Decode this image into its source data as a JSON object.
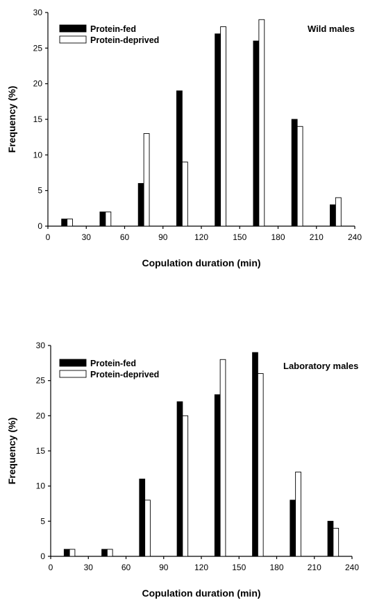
{
  "chart_data": [
    {
      "type": "bar",
      "title": "Wild males",
      "xlabel": "Copulation duration (min)",
      "ylabel": "Frequency (%)",
      "xlim": [
        0,
        240
      ],
      "ylim": [
        0,
        30
      ],
      "xticks": [
        0,
        30,
        60,
        90,
        120,
        150,
        180,
        210,
        240
      ],
      "yticks": [
        0,
        5,
        10,
        15,
        20,
        25,
        30
      ],
      "legend_position": "top-left",
      "grid": false,
      "x": [
        15,
        45,
        75,
        105,
        135,
        165,
        195,
        225
      ],
      "series": [
        {
          "name": "Protein-fed",
          "color": "#000000",
          "values": [
            1,
            2,
            6,
            19,
            27,
            26,
            15,
            3
          ]
        },
        {
          "name": "Protein-deprived",
          "color": "#ffffff",
          "values": [
            1,
            2,
            13,
            9,
            28,
            29,
            14,
            4
          ]
        }
      ]
    },
    {
      "type": "bar",
      "title": "Laboratory males",
      "xlabel": "Copulation duration (min)",
      "ylabel": "Frequency (%)",
      "xlim": [
        0,
        240
      ],
      "ylim": [
        0,
        30
      ],
      "xticks": [
        0,
        30,
        60,
        90,
        120,
        150,
        180,
        210,
        240
      ],
      "yticks": [
        0,
        5,
        10,
        15,
        20,
        25,
        30
      ],
      "legend_position": "top-left",
      "grid": false,
      "x": [
        15,
        45,
        75,
        105,
        135,
        165,
        195,
        225
      ],
      "series": [
        {
          "name": "Protein-fed",
          "color": "#000000",
          "values": [
            1,
            1,
            11,
            22,
            23,
            29,
            8,
            5
          ]
        },
        {
          "name": "Protein-deprived",
          "color": "#ffffff",
          "values": [
            1,
            1,
            8,
            20,
            28,
            26,
            12,
            4
          ]
        }
      ]
    }
  ]
}
